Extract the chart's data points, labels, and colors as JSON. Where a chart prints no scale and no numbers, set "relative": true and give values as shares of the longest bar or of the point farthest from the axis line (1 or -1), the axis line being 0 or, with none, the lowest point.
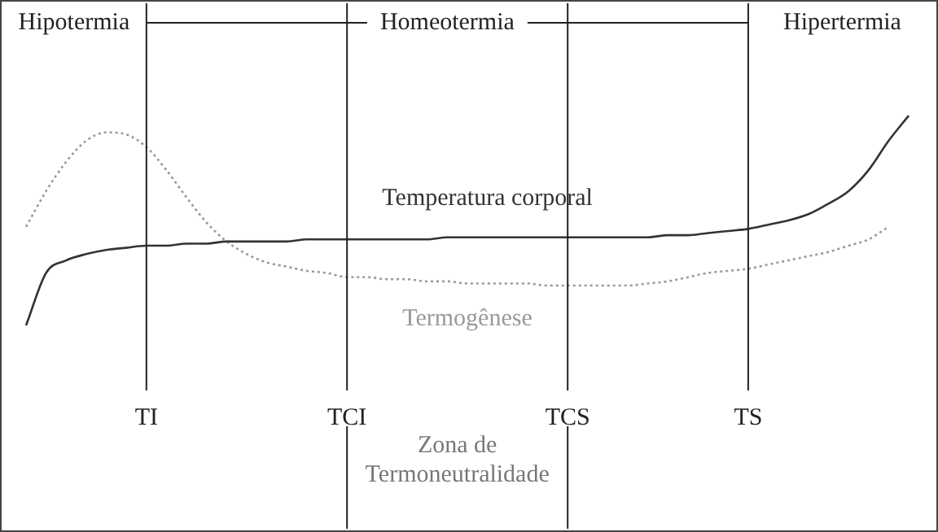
{
  "chart_data": {
    "type": "line",
    "relative": true,
    "legend": false,
    "grid": false,
    "marker": "none",
    "categories": [
      null,
      null,
      null,
      null,
      null,
      null,
      "TI",
      null,
      null,
      null,
      null,
      null,
      null,
      null,
      null,
      null,
      "TCI",
      null,
      null,
      null,
      null,
      null,
      null,
      null,
      null,
      null,
      null,
      "TCS",
      null,
      null,
      null,
      null,
      null,
      null,
      null,
      null,
      "TS",
      null,
      null,
      null,
      null,
      null,
      null,
      null,
      null
    ],
    "series": [
      {
        "name": "Temperatura corporal",
        "color": "#333333",
        "line_style": "solid",
        "values": [
          0,
          0.25,
          0.31,
          0.34,
          0.36,
          0.37,
          0.38,
          0.38,
          0.39,
          0.39,
          0.4,
          0.4,
          0.4,
          0.4,
          0.41,
          0.41,
          0.41,
          0.41,
          0.41,
          0.41,
          0.41,
          0.42,
          0.42,
          0.42,
          0.42,
          0.42,
          0.42,
          0.42,
          0.42,
          0.42,
          0.42,
          0.42,
          0.43,
          0.43,
          0.44,
          0.45,
          0.46,
          0.48,
          0.5,
          0.53,
          0.58,
          0.64,
          0.74,
          0.88,
          1
        ]
      },
      {
        "name": "Termogênese",
        "color": "#999999",
        "line_style": "dotted",
        "values": [
          0.47,
          0.64,
          0.78,
          0.88,
          0.92,
          0.91,
          0.85,
          0.74,
          0.61,
          0.49,
          0.4,
          0.34,
          0.3,
          0.28,
          0.26,
          0.25,
          0.23,
          0.23,
          0.22,
          0.22,
          0.21,
          0.21,
          0.2,
          0.2,
          0.2,
          0.2,
          0.19,
          0.19,
          0.19,
          0.19,
          0.19,
          0.2,
          0.21,
          0.23,
          0.25,
          0.26,
          0.27,
          0.29,
          0.31,
          0.33,
          0.35,
          0.38,
          0.41,
          0.47,
          null
        ]
      }
    ],
    "ref_lines": [
      {
        "axis": "x",
        "value": "TI"
      },
      {
        "axis": "x",
        "value": "TCI"
      },
      {
        "axis": "x",
        "value": "TCS"
      },
      {
        "axis": "x",
        "value": "TS"
      }
    ],
    "annotations": [
      "Hipotermia",
      "Homeotermia",
      "Hipertermia",
      "Zona de Termoneutralidade"
    ]
  }
}
